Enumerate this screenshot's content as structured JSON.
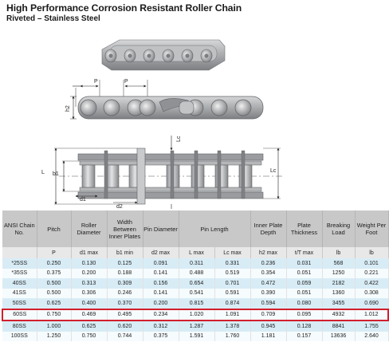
{
  "header": {
    "title": "High Performance Corrosion Resistant Roller Chain",
    "subtitle": "Riveted – Stainless Steel"
  },
  "drawing_labels": {
    "pitch1": "P",
    "pitch2": "P",
    "h2": "h2",
    "L": "L",
    "b1": "b1",
    "Lc_top": "Lc",
    "Lc_side": "Lc",
    "d1": "d1",
    "d2": "d2"
  },
  "table": {
    "headers": [
      "ANSI Chain No.",
      "Pitch",
      "Roller Diameter",
      "Width Between Inner Plates",
      "Pin Diameter",
      "Pin Length",
      "Inner Plate Depth",
      "Plate Thickness",
      "Breaking Load",
      "Weight Per Foot"
    ],
    "units": [
      "",
      "P",
      "d1 max",
      "b1 min",
      "d2 max",
      "L max",
      "Lc max",
      "h2 max",
      "t/T max",
      "lb",
      "lb"
    ],
    "rows": [
      [
        "*25SS",
        "0.250",
        "0.130",
        "0.125",
        "0.091",
        "0.311",
        "0.331",
        "0.236",
        "0.031",
        "568",
        "0.101"
      ],
      [
        "*35SS",
        "0.375",
        "0.200",
        "0.188",
        "0.141",
        "0.488",
        "0.519",
        "0.354",
        "0.051",
        "1250",
        "0.221"
      ],
      [
        "40SS",
        "0.500",
        "0.313",
        "0.309",
        "0.156",
        "0.654",
        "0.701",
        "0.472",
        "0.059",
        "2182",
        "0.422"
      ],
      [
        "41SS",
        "0.500",
        "0.306",
        "0.246",
        "0.141",
        "0.541",
        "0.591",
        "0.390",
        "0.051",
        "1360",
        "0.308"
      ],
      [
        "50SS",
        "0.625",
        "0.400",
        "0.370",
        "0.200",
        "0.815",
        "0.874",
        "0.594",
        "0.080",
        "3455",
        "0.690"
      ],
      [
        "60SS",
        "0.750",
        "0.469",
        "0.495",
        "0.234",
        "1.020",
        "1.091",
        "0.709",
        "0.095",
        "4932",
        "1.012"
      ],
      [
        "80SS",
        "1.000",
        "0.625",
        "0.620",
        "0.312",
        "1.287",
        "1.378",
        "0.945",
        "0.128",
        "8841",
        "1.755"
      ],
      [
        "100SS",
        "1.250",
        "0.750",
        "0.744",
        "0.375",
        "1.591",
        "1.760",
        "1.181",
        "0.157",
        "13636",
        "2.640"
      ]
    ],
    "highlighted_row": "60SS"
  },
  "colors": {
    "header_bg": "#c8c8c8",
    "units_bg": "#e8e8e8",
    "row_blue": "#d8ecf6",
    "row_white": "#f6fbfd",
    "highlight_border": "#d21f2d",
    "chain_metal": "#a9abad"
  }
}
